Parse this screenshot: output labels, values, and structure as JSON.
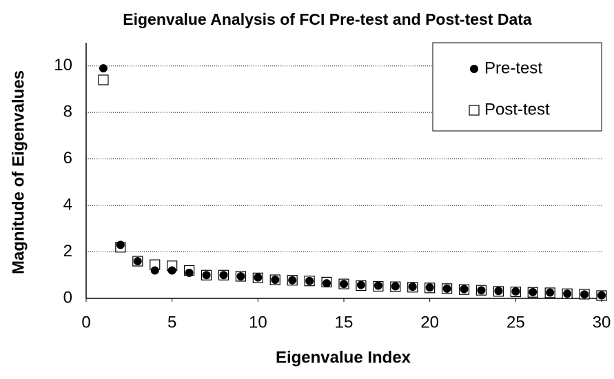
{
  "chart_data": {
    "type": "scatter",
    "title": "Eigenvalue Analysis of FCI Pre-test and Post-test Data",
    "x_label": "Eigenvalue Index",
    "y_label": "Magnitude of Eigenvalues",
    "x": [
      1,
      2,
      3,
      4,
      5,
      6,
      7,
      8,
      9,
      10,
      11,
      12,
      13,
      14,
      15,
      16,
      17,
      18,
      19,
      20,
      21,
      22,
      23,
      24,
      25,
      26,
      27,
      28,
      29,
      30
    ],
    "series": [
      {
        "name": "Pre-test",
        "color": "#000000",
        "marker": "circle",
        "values": [
          9.9,
          2.3,
          1.6,
          1.2,
          1.2,
          1.1,
          1.0,
          1.0,
          0.95,
          0.9,
          0.8,
          0.78,
          0.75,
          0.65,
          0.62,
          0.58,
          0.55,
          0.52,
          0.5,
          0.47,
          0.42,
          0.4,
          0.35,
          0.32,
          0.3,
          0.27,
          0.25,
          0.2,
          0.17,
          0.13
        ]
      },
      {
        "name": "Post-test",
        "color": "#000000",
        "marker": "square",
        "values": [
          9.4,
          2.2,
          1.6,
          1.45,
          1.4,
          1.2,
          1.0,
          1.0,
          0.95,
          0.88,
          0.8,
          0.78,
          0.75,
          0.7,
          0.62,
          0.55,
          0.52,
          0.5,
          0.48,
          0.45,
          0.42,
          0.38,
          0.35,
          0.3,
          0.28,
          0.26,
          0.24,
          0.2,
          0.18,
          0.12
        ]
      }
    ],
    "xlim": [
      0,
      30
    ],
    "xticks": [
      0,
      5,
      10,
      15,
      20,
      25,
      30
    ],
    "ylim": [
      0,
      11
    ],
    "yticks": [
      0,
      2,
      4,
      6,
      8,
      10
    ],
    "grid": true,
    "legend": "upper right"
  }
}
